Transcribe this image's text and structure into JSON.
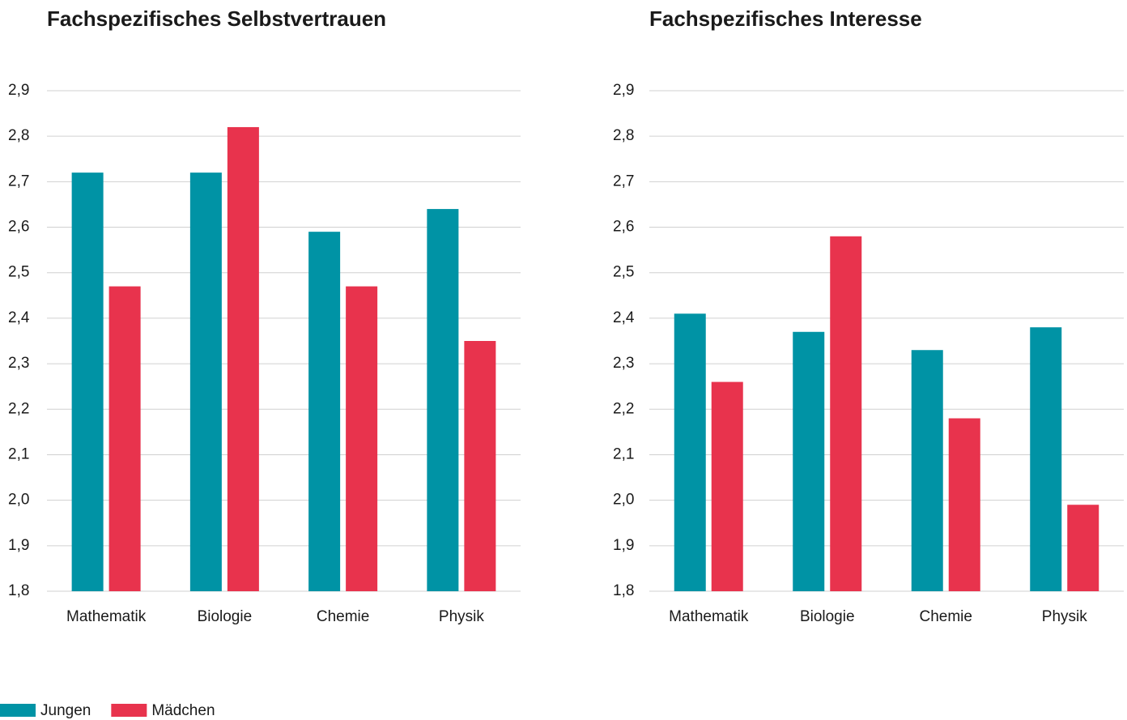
{
  "chart_data": [
    {
      "type": "bar",
      "title": "Fachspezifisches Selbstvertrauen",
      "categories": [
        "Mathematik",
        "Biologie",
        "Chemie",
        "Physik"
      ],
      "series": [
        {
          "name": "Jungen",
          "color": "#0093a5",
          "values": [
            2.72,
            2.72,
            2.59,
            2.64
          ]
        },
        {
          "name": "Mädchen",
          "color": "#e8334d",
          "values": [
            2.47,
            2.82,
            2.47,
            2.35
          ]
        }
      ],
      "ylim": [
        1.8,
        2.9
      ],
      "yticks": [
        {
          "value": 1.8,
          "label": "1,8"
        },
        {
          "value": 1.9,
          "label": "1,9"
        },
        {
          "value": 2.0,
          "label": "2,0"
        },
        {
          "value": 2.1,
          "label": "2,1"
        },
        {
          "value": 2.2,
          "label": "2,2"
        },
        {
          "value": 2.3,
          "label": "2,3"
        },
        {
          "value": 2.4,
          "label": "2,4"
        },
        {
          "value": 2.5,
          "label": "2,5"
        },
        {
          "value": 2.6,
          "label": "2,6"
        },
        {
          "value": 2.7,
          "label": "2,7"
        },
        {
          "value": 2.8,
          "label": "2,8"
        },
        {
          "value": 2.9,
          "label": "2,9"
        }
      ],
      "grid": true
    },
    {
      "type": "bar",
      "title": "Fachspezifisches Interesse",
      "categories": [
        "Mathematik",
        "Biologie",
        "Chemie",
        "Physik"
      ],
      "series": [
        {
          "color": "#0093a5",
          "values": [
            2.41,
            2.37,
            2.33,
            2.38
          ]
        },
        {
          "color": "#e8334d",
          "values": [
            2.26,
            2.58,
            2.18,
            1.99
          ]
        }
      ],
      "ylim": [
        1.8,
        2.9
      ],
      "yticks": [
        {
          "value": 1.8,
          "label": "1,8"
        },
        {
          "value": 1.9,
          "label": "1,9"
        },
        {
          "value": 2.0,
          "label": "2,0"
        },
        {
          "value": 2.1,
          "label": "2,1"
        },
        {
          "value": 2.2,
          "label": "2,2"
        },
        {
          "value": 2.3,
          "label": "2,3"
        },
        {
          "value": 2.4,
          "label": "2,4"
        },
        {
          "value": 2.5,
          "label": "2,5"
        },
        {
          "value": 2.6,
          "label": "2,6"
        },
        {
          "value": 2.7,
          "label": "2,7"
        },
        {
          "value": 2.8,
          "label": "2,8"
        },
        {
          "value": 2.9,
          "label": "2,9"
        }
      ],
      "grid": true
    }
  ]
}
